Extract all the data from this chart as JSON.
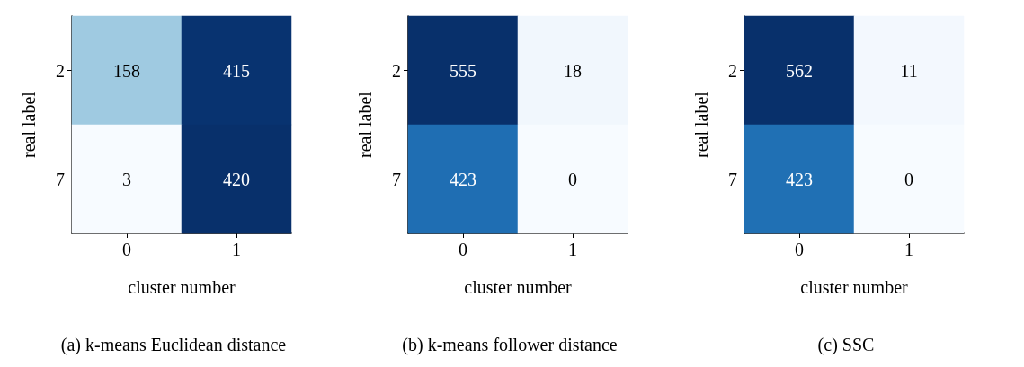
{
  "chart_data": [
    {
      "type": "heatmap",
      "title": "(a) k-means Euclidean distance",
      "xlabel": "cluster number",
      "ylabel": "real label",
      "categories": [
        "0",
        "1"
      ],
      "y_categories": [
        "2",
        "7"
      ],
      "cells": [
        [
          158,
          415
        ],
        [
          3,
          420
        ]
      ],
      "data_labels": true
    },
    {
      "type": "heatmap",
      "title": "(b) k-means follower distance",
      "xlabel": "cluster number",
      "ylabel": "real label",
      "categories": [
        "0",
        "1"
      ],
      "y_categories": [
        "2",
        "7"
      ],
      "cells": [
        [
          555,
          18
        ],
        [
          423,
          0
        ]
      ],
      "data_labels": true
    },
    {
      "type": "heatmap",
      "title": "(c) SSC",
      "xlabel": "cluster number",
      "ylabel": "real label",
      "categories": [
        "0",
        "1"
      ],
      "y_categories": [
        "2",
        "7"
      ],
      "cells": [
        [
          562,
          11
        ],
        [
          423,
          0
        ]
      ],
      "data_labels": true
    }
  ]
}
